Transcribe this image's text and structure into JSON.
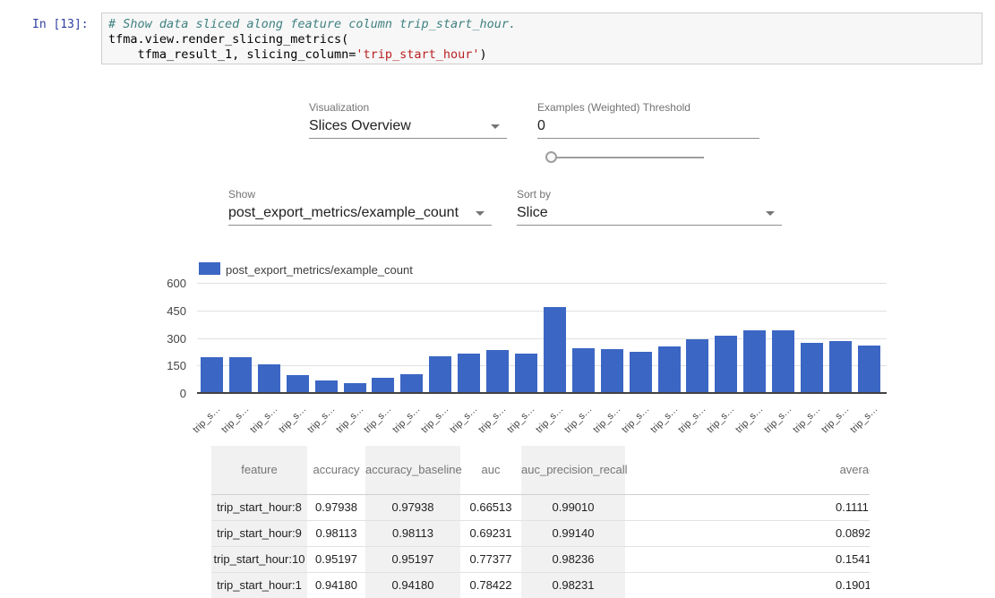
{
  "code_cell": {
    "prompt": "In [13]:",
    "comment_line": "# Show data sliced along feature column trip_start_hour.",
    "line2": "tfma.view.render_slicing_metrics(",
    "line3_pre": "    tfma_result_1, slicing_column=",
    "line3_string": "'trip_start_hour'",
    "line3_post": ")"
  },
  "controls": {
    "visualization": {
      "label": "Visualization",
      "value": "Slices Overview"
    },
    "threshold": {
      "label": "Examples (Weighted) Threshold",
      "value": "0"
    },
    "show": {
      "label": "Show",
      "value": "post_export_metrics/example_count"
    },
    "sort": {
      "label": "Sort by",
      "value": "Slice"
    }
  },
  "icons": {
    "dropdown_arrow": "triangle-down",
    "slider_handle": "circle"
  },
  "chart_data": {
    "type": "bar",
    "legend": "post_export_metrics/example_count",
    "bar_color": "#3b66c4",
    "ylim": [
      0,
      600
    ],
    "y_ticks": [
      600,
      450,
      300,
      150,
      0
    ],
    "x_tick_label": "trip_s…",
    "categories": [
      "trip_s…",
      "trip_s…",
      "trip_s…",
      "trip_s…",
      "trip_s…",
      "trip_s…",
      "trip_s…",
      "trip_s…",
      "trip_s…",
      "trip_s…",
      "trip_s…",
      "trip_s…",
      "trip_s…",
      "trip_s…",
      "trip_s…",
      "trip_s…",
      "trip_s…",
      "trip_s…",
      "trip_s…",
      "trip_s…",
      "trip_s…",
      "trip_s…",
      "trip_s…",
      "trip_s…"
    ],
    "values": [
      190,
      190,
      150,
      92,
      64,
      48,
      77,
      97,
      193,
      210,
      229,
      210,
      465,
      237,
      234,
      221,
      247,
      286,
      306,
      335,
      335,
      270,
      276,
      255
    ],
    "grid": true,
    "legend_position": "top-left"
  },
  "table": {
    "headers": [
      "feature",
      "accuracy",
      "accuracy_baseline",
      "auc",
      "auc_precision_recall",
      "average_los"
    ],
    "rows": [
      [
        "trip_start_hour:8",
        "0.97938",
        "0.97938",
        "0.66513",
        "0.99010",
        "0.1111"
      ],
      [
        "trip_start_hour:9",
        "0.98113",
        "0.98113",
        "0.69231",
        "0.99140",
        "0.0892"
      ],
      [
        "trip_start_hour:10",
        "0.95197",
        "0.95197",
        "0.77377",
        "0.98236",
        "0.1541"
      ],
      [
        "trip_start_hour:1",
        "0.94180",
        "0.94180",
        "0.78422",
        "0.98231",
        "0.1901"
      ]
    ]
  }
}
